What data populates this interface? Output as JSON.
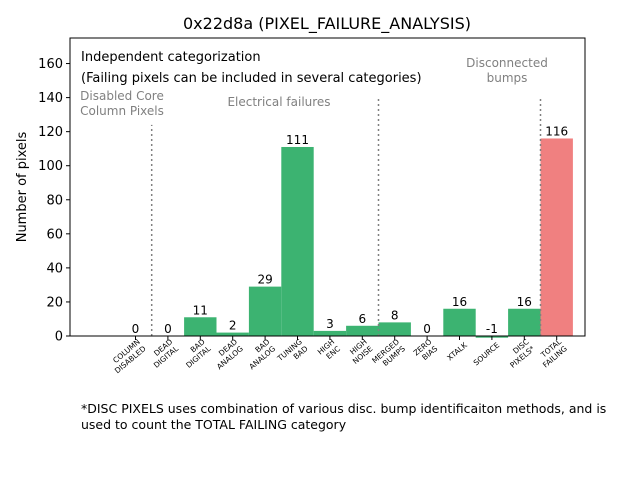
{
  "chart_data": {
    "type": "bar",
    "title": "0x22d8a (PIXEL_FAILURE_ANALYSIS)",
    "xlabel": "",
    "ylabel": "Number of pixels",
    "ylim": [
      0,
      175
    ],
    "yticks": [
      0,
      20,
      40,
      60,
      80,
      100,
      120,
      140,
      160
    ],
    "grid": false,
    "categories": [
      [
        "COLUMN",
        "DISABLED"
      ],
      [
        "DEAD",
        "DIGITAL"
      ],
      [
        "BAD",
        "DIGITAL"
      ],
      [
        "DEAD",
        "ANALOG"
      ],
      [
        "BAD",
        "ANALOG"
      ],
      [
        "TUNING",
        "BAD"
      ],
      [
        "HIGH",
        "ENC"
      ],
      [
        "HIGH",
        "NOISE"
      ],
      [
        "MERGED",
        "BUMPS"
      ],
      [
        "ZERO",
        "BIAS"
      ],
      [
        "XTALK"
      ],
      [
        "SOURCE"
      ],
      [
        "DISC",
        "PIXELS*"
      ],
      [
        "TOTAL",
        "FAILING"
      ]
    ],
    "values": [
      0,
      0,
      11,
      2,
      29,
      111,
      3,
      6,
      8,
      0,
      16,
      -1,
      16,
      116
    ],
    "value_labels": [
      "0",
      "0",
      "11",
      "2",
      "29",
      "111",
      "3",
      "6",
      "8",
      "0",
      "16",
      "-1",
      "16",
      "116"
    ],
    "colors": {
      "bar": "#3cb371",
      "total": "#f08080",
      "divider": "#808080",
      "section_text": "#808080"
    },
    "total_index": 13,
    "dividers": [
      {
        "after_index": 0,
        "top_value": 124
      },
      {
        "after_index": 7,
        "top_value": 140
      },
      {
        "after_index": 12,
        "top_value": 140
      }
    ],
    "section_labels": [
      {
        "lines": [
          "Disabled Core",
          "Column Pixels"
        ],
        "near_index": 0
      },
      {
        "lines": [
          "Electrical failures"
        ],
        "near_index": 4
      },
      {
        "lines": [
          "Disconnected",
          "bumps"
        ],
        "near_index": 11
      }
    ],
    "annotation": [
      "Independent categorization",
      "(Failing pixels can be included in several categories)"
    ]
  },
  "footnote": "*DISC PIXELS uses combination of various disc. bump identificaiton methods, and is used to count the TOTAL FAILING category"
}
